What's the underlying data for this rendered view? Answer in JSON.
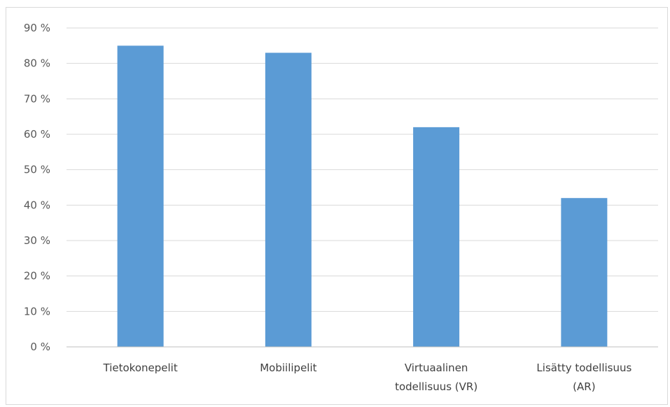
{
  "chart_data": {
    "type": "bar",
    "title": "",
    "xlabel": "",
    "ylabel": "",
    "categories": [
      [
        "Tietokonepelit"
      ],
      [
        "Mobiilipelit"
      ],
      [
        "Virtuaalinen",
        "todellisuus (VR)"
      ],
      [
        "Lisätty todellisuus",
        "(AR)"
      ]
    ],
    "values": [
      85,
      83,
      62,
      42
    ],
    "ylim": [
      0,
      90
    ],
    "yticks": [
      0,
      10,
      20,
      30,
      40,
      50,
      60,
      70,
      80,
      90
    ],
    "ytick_suffix": " %",
    "grid": true,
    "legend": "none",
    "colors": {
      "bar": "#5b9bd5",
      "grid": "#d9d9d9",
      "axis": "#bfbfbf"
    }
  }
}
